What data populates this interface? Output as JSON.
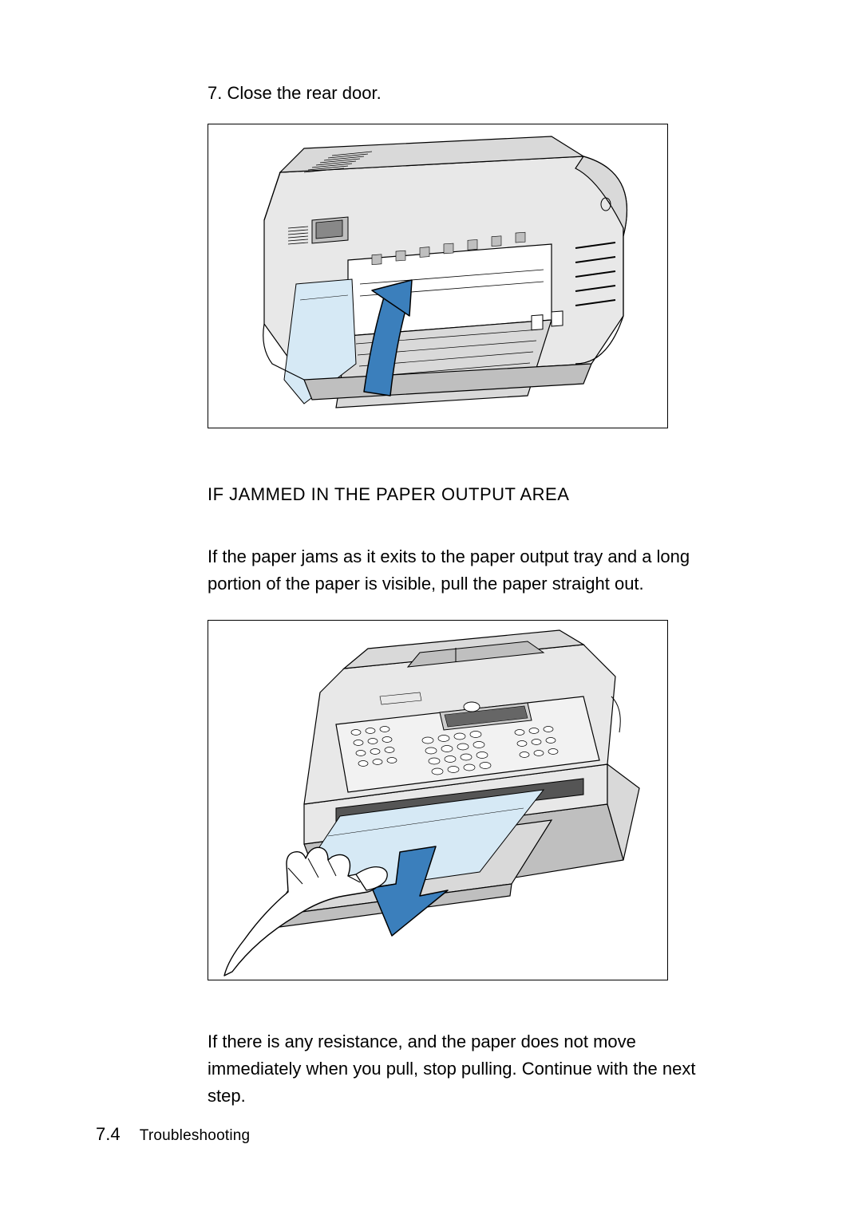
{
  "step7": "7. Close the rear door.",
  "subheading": "IF JAMMED IN THE PAPER OUTPUT AREA",
  "para1": "If the paper jams as it exits to the paper output tray and a long portion of the paper is visible, pull the paper straight out.",
  "para2": "If there is any resistance, and the paper does not move immediately when you pull, stop pulling. Continue with the next step.",
  "footer": {
    "page_number": "7.4",
    "section": "Troubleshooting"
  },
  "fig1": {
    "body_fill": "#e8e8e8",
    "body_stroke": "#000000",
    "light_grey": "#d9d9d9",
    "dark_grey": "#bfbfbf",
    "paper_fill": "#d6e9f5",
    "arrow_fill": "#3b7fbc",
    "arrow_stroke": "#000000",
    "hatch_stroke": "#000000",
    "stroke_w": 1.2
  },
  "fig2": {
    "body_fill": "#e8e8e8",
    "body_stroke": "#000000",
    "light_grey": "#d9d9d9",
    "dark_grey": "#bfbfbf",
    "panel_fill": "#f2f2f2",
    "paper_fill": "#d6e9f5",
    "arrow_fill": "#3b7fbc",
    "arrow_stroke": "#000000",
    "hand_fill": "#ffffff",
    "stroke_w": 1.2
  }
}
